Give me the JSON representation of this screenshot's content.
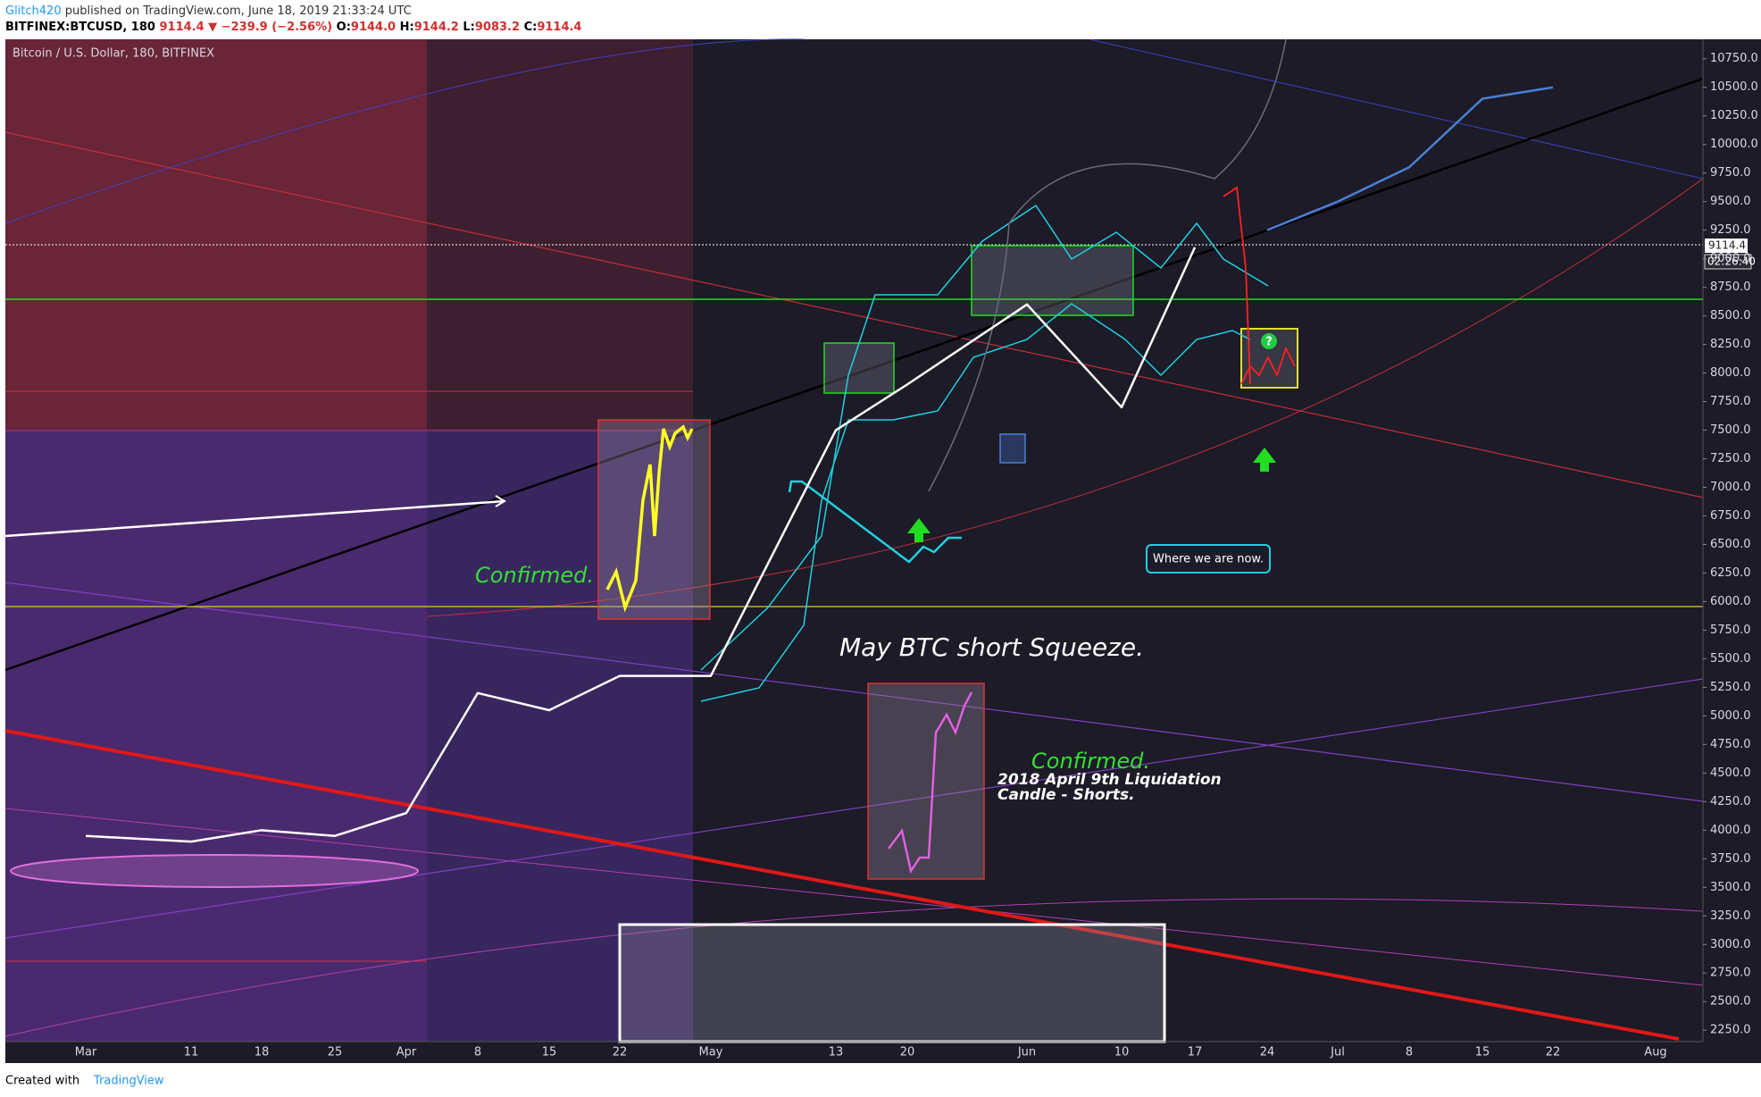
{
  "header": {
    "author": "Glitch420",
    "published": " published on TradingView.com, June 18, 2019 21:33:24 UTC",
    "symbol": "BITFINEX:BTCUSD, 180",
    "last": " 9114.4",
    "change": " ▼ −239.9 (−2.56%)",
    "ohlc": [
      {
        "label": " O:",
        "value": "9144.0"
      },
      {
        "label": " H:",
        "value": "9144.2"
      },
      {
        "label": " L:",
        "value": "9083.2"
      },
      {
        "label": " C:",
        "value": "9114.4"
      }
    ]
  },
  "chart_data": {
    "type": "line",
    "categories": [
      "Mar",
      "11",
      "18",
      "25",
      "Apr",
      "8",
      "15",
      "22",
      "May",
      "13",
      "20",
      "Jun",
      "10",
      "17",
      "24",
      "Jul",
      "8",
      "15",
      "22",
      "Aug"
    ],
    "series": [
      {
        "name": "Bitcoin / U.S. Dollar, 180, BITFINEX",
        "color": "#ffffff",
        "values": [
          3950,
          3900,
          4000,
          3950,
          4150,
          5200,
          5050,
          5350,
          5350,
          7500,
          7900,
          8600,
          7700,
          9100,
          null,
          null,
          null,
          null,
          null,
          null
        ]
      },
      {
        "color": "#4a7fd6",
        "values": [
          null,
          null,
          null,
          null,
          null,
          null,
          null,
          null,
          null,
          null,
          null,
          null,
          null,
          null,
          9250,
          9500,
          9800,
          10400,
          10500,
          null
        ]
      }
    ],
    "ylim": [
      2150,
      10920
    ],
    "yticks": [
      {
        "value": 2250,
        "label": "2250.0"
      },
      {
        "value": 2500,
        "label": "2500.0"
      },
      {
        "value": 2750,
        "label": "2750.0"
      },
      {
        "value": 3000,
        "label": "3000.0"
      },
      {
        "value": 3250,
        "label": "3250.0"
      },
      {
        "value": 3500,
        "label": "3500.0"
      },
      {
        "value": 3750,
        "label": "3750.0"
      },
      {
        "value": 4000,
        "label": "4000.0"
      },
      {
        "value": 4250,
        "label": "4250.0"
      },
      {
        "value": 4500,
        "label": "4500.0"
      },
      {
        "value": 4750,
        "label": "4750.0"
      },
      {
        "value": 5000,
        "label": "5000.0"
      },
      {
        "value": 5250,
        "label": "5250.0"
      },
      {
        "value": 5500,
        "label": "5500.0"
      },
      {
        "value": 5750,
        "label": "5750.0"
      },
      {
        "value": 6000,
        "label": "6000.0"
      },
      {
        "value": 6250,
        "label": "6250.0"
      },
      {
        "value": 6500,
        "label": "6500.0"
      },
      {
        "value": 6750,
        "label": "6750.0"
      },
      {
        "value": 7000,
        "label": "7000.0"
      },
      {
        "value": 7250,
        "label": "7250.0"
      },
      {
        "value": 7500,
        "label": "7500.0"
      },
      {
        "value": 7750,
        "label": "7750.0"
      },
      {
        "value": 8000,
        "label": "8000.0"
      },
      {
        "value": 8250,
        "label": "8250.0"
      },
      {
        "value": 8500,
        "label": "8500.0"
      },
      {
        "value": 8750,
        "label": "8750.0"
      },
      {
        "value": 9000,
        "label": "9000.0"
      },
      {
        "value": 9250,
        "label": "9250.0"
      },
      {
        "value": 9500,
        "label": "9500.0"
      },
      {
        "value": 9750,
        "label": "9750.0"
      },
      {
        "value": 10000,
        "label": "10000.0"
      },
      {
        "value": 10250,
        "label": "10250.0"
      },
      {
        "value": 10500,
        "label": "10500.0"
      },
      {
        "value": 10750,
        "label": "10750.0"
      }
    ],
    "grid": false,
    "price_tag": "9114.4",
    "countdown": "02:26:40",
    "annotations": {
      "confirmed_1": "Confirmed.",
      "squeeze": "May BTC short Squeeze.",
      "confirmed_2": "Confirmed.",
      "liquidation_1": "2018 April 9th Liquidation",
      "liquidation_2": "Candle - Shorts.",
      "now": "Where we are now.",
      "question": "?"
    }
  },
  "footer": {
    "created": "Created with",
    "brand": "TradingView"
  }
}
